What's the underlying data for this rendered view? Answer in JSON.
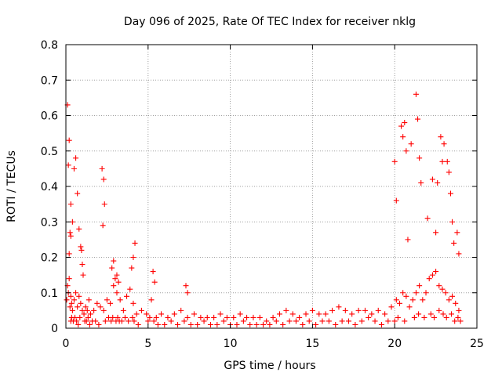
{
  "chart_data": {
    "type": "scatter",
    "title": "Day 096 of 2025, Rate Of TEC Index for receiver nklg",
    "xlabel": "GPS time / hours",
    "ylabel": "ROTI / TECUs",
    "xlim": [
      0,
      25
    ],
    "ylim": [
      0,
      0.8
    ],
    "grid": true,
    "marker": "+",
    "color": "#ff0000",
    "x_ticks": [
      "0",
      "5",
      "10",
      "15",
      "20",
      "25"
    ],
    "y_ticks": [
      "0",
      "0.1",
      "0.2",
      "0.3",
      "0.4",
      "0.5",
      "0.6",
      "0.7",
      "0.8"
    ],
    "series": [
      {
        "name": "ROTI",
        "x": [
          0.05,
          0.1,
          0.15,
          0.2,
          0.25,
          0.3,
          0.35,
          0.4,
          0.5,
          0.6,
          0.7,
          0.8,
          0.9,
          1.0,
          1.1,
          1.2,
          1.3,
          1.4,
          1.5,
          1.7,
          1.9,
          2.1,
          2.3,
          2.5,
          2.7,
          2.9,
          3.1,
          3.3,
          3.5,
          3.7,
          3.9,
          4.1,
          4.3,
          4.6,
          4.9,
          5.2,
          5.5,
          5.8,
          6.2,
          6.6,
          7.0,
          7.4,
          7.8,
          8.2,
          8.6,
          9.0,
          9.4,
          9.8,
          10.2,
          10.6,
          11.0,
          11.4,
          11.8,
          12.2,
          12.6,
          13.0,
          13.4,
          13.8,
          14.2,
          14.6,
          15.0,
          15.4,
          15.8,
          16.2,
          16.6,
          17.0,
          17.4,
          17.8,
          18.2,
          18.6,
          19.0,
          19.4,
          19.8,
          20.1,
          20.3,
          20.5,
          20.7,
          20.9,
          21.1,
          21.3,
          21.5,
          21.7,
          21.9,
          22.1,
          22.3,
          22.5,
          22.7,
          22.9,
          23.1,
          23.3,
          23.5,
          23.7,
          23.9,
          0.1,
          0.2,
          0.15,
          0.3,
          0.4,
          0.25,
          0.5,
          0.6,
          0.7,
          0.8,
          0.9,
          0.95,
          1.0,
          1.05,
          2.2,
          2.3,
          2.35,
          2.25,
          0.2,
          0.3,
          2.8,
          2.9,
          3.0,
          3.1,
          3.2,
          4.0,
          4.1,
          4.2,
          5.3,
          5.4,
          7.3,
          7.4,
          20.0,
          20.1,
          20.4,
          20.5,
          20.6,
          20.7,
          20.8,
          21.0,
          21.3,
          21.4,
          21.5,
          21.6,
          22.0,
          22.3,
          22.5,
          22.6,
          22.8,
          22.9,
          23.0,
          23.2,
          23.3,
          23.4,
          23.5,
          23.6,
          23.8,
          23.9,
          0.3,
          0.35,
          0.45,
          0.55,
          0.65,
          0.75,
          0.85,
          1.15,
          1.25,
          1.35,
          1.45,
          1.6,
          1.8,
          2.0,
          2.4,
          2.6,
          2.75,
          2.85,
          3.05,
          3.15,
          3.25,
          3.4,
          3.6,
          3.8,
          4.05,
          4.15,
          4.4,
          5.0,
          5.1,
          5.35,
          5.6,
          6.0,
          6.4,
          6.8,
          7.2,
          7.6,
          8.0,
          8.4,
          8.8,
          9.2,
          9.6,
          10.0,
          10.4,
          10.8,
          11.2,
          11.6,
          12.0,
          12.4,
          12.8,
          13.2,
          13.6,
          14.0,
          14.4,
          14.8,
          15.2,
          15.6,
          16.0,
          16.4,
          16.8,
          17.2,
          17.6,
          18.0,
          18.4,
          18.8,
          19.2,
          19.6,
          20.0,
          20.2,
          20.6,
          21.2,
          21.45,
          21.8,
          22.2,
          22.4,
          22.7,
          22.95,
          23.15,
          23.45,
          23.65,
          23.85,
          24.0
        ],
        "y": [
          0.08,
          0.12,
          0.1,
          0.14,
          0.06,
          0.09,
          0.07,
          0.05,
          0.08,
          0.1,
          0.06,
          0.09,
          0.07,
          0.05,
          0.04,
          0.06,
          0.05,
          0.08,
          0.04,
          0.05,
          0.07,
          0.06,
          0.05,
          0.08,
          0.07,
          0.12,
          0.1,
          0.08,
          0.05,
          0.09,
          0.11,
          0.07,
          0.04,
          0.05,
          0.04,
          0.08,
          0.03,
          0.04,
          0.03,
          0.04,
          0.05,
          0.03,
          0.04,
          0.03,
          0.03,
          0.03,
          0.04,
          0.03,
          0.03,
          0.04,
          0.03,
          0.03,
          0.03,
          0.02,
          0.03,
          0.04,
          0.05,
          0.04,
          0.03,
          0.04,
          0.05,
          0.04,
          0.04,
          0.05,
          0.06,
          0.05,
          0.04,
          0.05,
          0.05,
          0.04,
          0.05,
          0.04,
          0.06,
          0.08,
          0.07,
          0.1,
          0.09,
          0.06,
          0.08,
          0.1,
          0.12,
          0.08,
          0.1,
          0.14,
          0.15,
          0.16,
          0.12,
          0.11,
          0.1,
          0.08,
          0.09,
          0.07,
          0.05,
          0.63,
          0.53,
          0.46,
          0.35,
          0.3,
          0.27,
          0.45,
          0.48,
          0.38,
          0.28,
          0.23,
          0.22,
          0.18,
          0.15,
          0.45,
          0.42,
          0.35,
          0.29,
          0.21,
          0.26,
          0.17,
          0.19,
          0.14,
          0.15,
          0.13,
          0.17,
          0.2,
          0.24,
          0.16,
          0.13,
          0.12,
          0.1,
          0.47,
          0.36,
          0.57,
          0.54,
          0.58,
          0.5,
          0.25,
          0.52,
          0.66,
          0.59,
          0.48,
          0.41,
          0.31,
          0.42,
          0.27,
          0.41,
          0.54,
          0.47,
          0.52,
          0.47,
          0.44,
          0.38,
          0.3,
          0.24,
          0.27,
          0.21,
          0.02,
          0.03,
          0.02,
          0.03,
          0.02,
          0.01,
          0.03,
          0.02,
          0.02,
          0.03,
          0.01,
          0.02,
          0.02,
          0.01,
          0.02,
          0.03,
          0.02,
          0.03,
          0.02,
          0.03,
          0.02,
          0.02,
          0.03,
          0.02,
          0.03,
          0.02,
          0.01,
          0.02,
          0.03,
          0.02,
          0.01,
          0.01,
          0.02,
          0.01,
          0.02,
          0.01,
          0.01,
          0.02,
          0.01,
          0.01,
          0.02,
          0.01,
          0.01,
          0.02,
          0.01,
          0.01,
          0.01,
          0.01,
          0.02,
          0.01,
          0.02,
          0.02,
          0.01,
          0.02,
          0.01,
          0.02,
          0.02,
          0.01,
          0.02,
          0.02,
          0.01,
          0.02,
          0.03,
          0.02,
          0.01,
          0.02,
          0.02,
          0.03,
          0.02,
          0.03,
          0.04,
          0.03,
          0.04,
          0.03,
          0.05,
          0.04,
          0.03,
          0.04,
          0.02,
          0.03,
          0.02
        ]
      }
    ]
  }
}
